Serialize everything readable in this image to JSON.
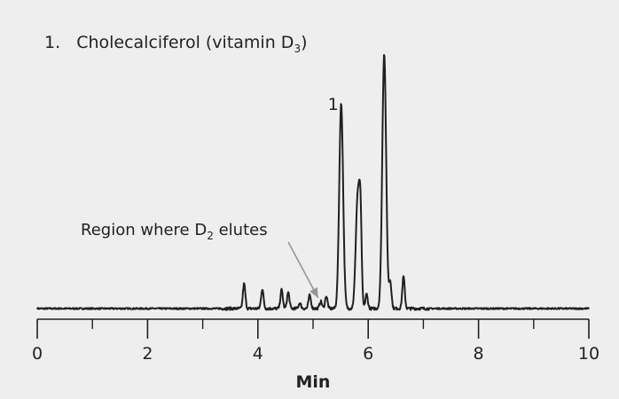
{
  "chart_data": {
    "type": "line",
    "title": "",
    "legend_entries": [
      {
        "number": "1.",
        "name": "Cholecalciferol (vitamin D",
        "subscript": "3",
        "suffix": ")"
      }
    ],
    "xlabel": "Min",
    "ylabel": "",
    "xlim": [
      0,
      10
    ],
    "x_ticks": [
      "0",
      "2",
      "4",
      "6",
      "8",
      "10"
    ],
    "x_minor_ticks": [
      1,
      3,
      5,
      7,
      9
    ],
    "y_axis_shown": false,
    "grid": false,
    "line_color": "#231f20",
    "peaks_relative_intensity_percent": [
      {
        "t": 3.75,
        "h": 9.7
      },
      {
        "t": 4.08,
        "h": 7.6
      },
      {
        "t": 4.43,
        "h": 7.3
      },
      {
        "t": 4.55,
        "h": 6.3
      },
      {
        "t": 4.76,
        "h": 2.1
      },
      {
        "t": 4.94,
        "h": 5.2
      },
      {
        "t": 5.14,
        "h": 2.8
      },
      {
        "t": 5.24,
        "h": 4.9
      },
      {
        "t": 5.51,
        "h": 80.2,
        "label": "1"
      },
      {
        "t": 5.81,
        "h": 44.2
      },
      {
        "t": 5.86,
        "h": 30.0
      },
      {
        "t": 5.97,
        "h": 5.6
      },
      {
        "t": 6.29,
        "h": 100
      },
      {
        "t": 6.4,
        "h": 10.4
      },
      {
        "t": 6.64,
        "h": 12.5
      }
    ],
    "annotations": [
      {
        "text": "Region where D",
        "subscript": "2",
        "suffix": " elutes",
        "points_to_t": 5.14,
        "arrow_color": "#939598"
      },
      {
        "text": "1",
        "points_to_t": 5.51
      }
    ]
  }
}
